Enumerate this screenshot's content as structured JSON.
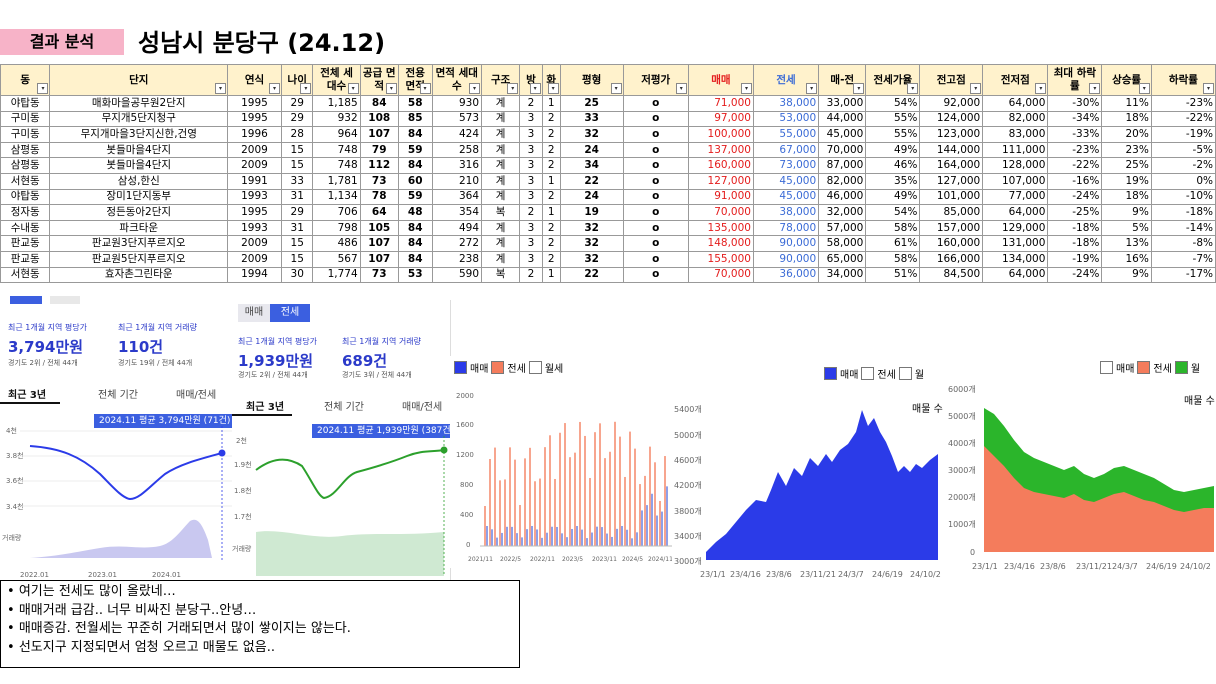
{
  "header": {
    "tag": "결과 분석",
    "title": "성남시 분당구 (24.12)"
  },
  "table": {
    "columns": [
      "동",
      "단지",
      "연식",
      "나이",
      "전체 세대수",
      "공급 면적",
      "전용 면적",
      "면적 세대수",
      "구조",
      "방",
      "화",
      "평형",
      "저평가",
      "매매",
      "전세",
      "매-전",
      "전세가율",
      "전고점",
      "전저점",
      "최대 하락률",
      "상승률",
      "하락률"
    ],
    "rows": [
      [
        "야탑동",
        "매화마을공무원2단지",
        "1995",
        "29",
        "1,185",
        "84",
        "58",
        "930",
        "계",
        "2",
        "1",
        "25",
        "o",
        "71,000",
        "38,000",
        "33,000",
        "54%",
        "92,000",
        "64,000",
        "-30%",
        "11%",
        "-23%"
      ],
      [
        "구미동",
        "무지개5단지청구",
        "1995",
        "29",
        "932",
        "108",
        "85",
        "573",
        "계",
        "3",
        "2",
        "33",
        "o",
        "97,000",
        "53,000",
        "44,000",
        "55%",
        "124,000",
        "82,000",
        "-34%",
        "18%",
        "-22%"
      ],
      [
        "구미동",
        "무지개마을3단지신한,건영",
        "1996",
        "28",
        "964",
        "107",
        "84",
        "424",
        "계",
        "3",
        "2",
        "32",
        "o",
        "100,000",
        "55,000",
        "45,000",
        "55%",
        "123,000",
        "83,000",
        "-33%",
        "20%",
        "-19%"
      ],
      [
        "삼평동",
        "봇들마을4단지",
        "2009",
        "15",
        "748",
        "79",
        "59",
        "258",
        "계",
        "3",
        "2",
        "24",
        "o",
        "137,000",
        "67,000",
        "70,000",
        "49%",
        "144,000",
        "111,000",
        "-23%",
        "23%",
        "-5%"
      ],
      [
        "삼평동",
        "봇들마을4단지",
        "2009",
        "15",
        "748",
        "112",
        "84",
        "316",
        "계",
        "3",
        "2",
        "34",
        "o",
        "160,000",
        "73,000",
        "87,000",
        "46%",
        "164,000",
        "128,000",
        "-22%",
        "25%",
        "-2%"
      ],
      [
        "서현동",
        "삼성,한신",
        "1991",
        "33",
        "1,781",
        "73",
        "60",
        "210",
        "계",
        "3",
        "1",
        "22",
        "o",
        "127,000",
        "45,000",
        "82,000",
        "35%",
        "127,000",
        "107,000",
        "-16%",
        "19%",
        "0%"
      ],
      [
        "야탑동",
        "장미1단지동부",
        "1993",
        "31",
        "1,134",
        "78",
        "59",
        "364",
        "계",
        "3",
        "2",
        "24",
        "o",
        "91,000",
        "45,000",
        "46,000",
        "49%",
        "101,000",
        "77,000",
        "-24%",
        "18%",
        "-10%"
      ],
      [
        "정자동",
        "정든동아2단지",
        "1995",
        "29",
        "706",
        "64",
        "48",
        "354",
        "복",
        "2",
        "1",
        "19",
        "o",
        "70,000",
        "38,000",
        "32,000",
        "54%",
        "85,000",
        "64,000",
        "-25%",
        "9%",
        "-18%"
      ],
      [
        "수내동",
        "파크타운",
        "1993",
        "31",
        "798",
        "105",
        "84",
        "494",
        "계",
        "3",
        "2",
        "32",
        "o",
        "135,000",
        "78,000",
        "57,000",
        "58%",
        "157,000",
        "129,000",
        "-18%",
        "5%",
        "-14%"
      ],
      [
        "판교동",
        "판교원3단지푸르지오",
        "2009",
        "15",
        "486",
        "107",
        "84",
        "272",
        "계",
        "3",
        "2",
        "32",
        "o",
        "148,000",
        "90,000",
        "58,000",
        "61%",
        "160,000",
        "131,000",
        "-18%",
        "13%",
        "-8%"
      ],
      [
        "판교동",
        "판교원5단지푸르지오",
        "2009",
        "15",
        "567",
        "107",
        "84",
        "238",
        "계",
        "3",
        "2",
        "32",
        "o",
        "155,000",
        "90,000",
        "65,000",
        "58%",
        "166,000",
        "134,000",
        "-19%",
        "16%",
        "-7%"
      ],
      [
        "서현동",
        "효자촌그린타운",
        "1994",
        "30",
        "1,774",
        "73",
        "53",
        "590",
        "복",
        "2",
        "1",
        "22",
        "o",
        "70,000",
        "36,000",
        "34,000",
        "51%",
        "84,500",
        "64,000",
        "-24%",
        "9%",
        "-17%"
      ]
    ]
  },
  "panel1": {
    "lbl_price": "최근 1개월 지역 평당가",
    "lbl_vol": "최근 1개월 지역 거래량",
    "price": "3,794만원",
    "vol": "110건",
    "rank_price": "경기도 2위 / 전체 44개",
    "rank_vol": "경기도 19위 / 전체 44개",
    "tabs": [
      "최근 3년",
      "전체 기간",
      "매매/전세"
    ],
    "tip": "2024.11 평균 3,794만원 (71건)",
    "yticks": [
      "4천",
      "3.8천",
      "3.6천",
      "3.4천"
    ],
    "vol_label": "거래량",
    "xticks": [
      "2022.01",
      "2023.01",
      "2024.01"
    ]
  },
  "panel2": {
    "toggle": [
      "매매",
      "전세"
    ],
    "lbl_price": "최근 1개월 지역 평당가",
    "lbl_vol": "최근 1개월 지역 거래량",
    "price": "1,939만원",
    "vol": "689건",
    "rank_price": "경기도 2위 / 전체 44개",
    "rank_vol": "경기도 3위 / 전체 44개",
    "tabs": [
      "최근 3년",
      "전체 기간",
      "매매/전세"
    ],
    "tip": "2024.11 평균 1,939만원 (387건)",
    "yticks": [
      "2천",
      "1.9천",
      "1.8천",
      "1.7천"
    ],
    "vol_label": "거래량"
  },
  "chart3": {
    "legend": [
      "매매",
      "전세",
      "월세"
    ],
    "yticks": [
      "2000",
      "1600",
      "1200",
      "800",
      "400",
      "0"
    ],
    "xticks": [
      "2021/11",
      "2022/5",
      "2022/11",
      "2023/5",
      "2023/11",
      "2024/5",
      "2024/11"
    ]
  },
  "chart4": {
    "legend": [
      "매매",
      "전세",
      "월"
    ],
    "title": "매물 수",
    "yticks": [
      "5400개",
      "5000개",
      "4600개",
      "4200개",
      "3800개",
      "3400개",
      "3000개"
    ],
    "xticks": [
      "23/1/1",
      "23/4/16",
      "23/8/6",
      "23/11/21",
      "24/3/7",
      "24/6/19",
      "24/10/2"
    ]
  },
  "chart5": {
    "legend": [
      "매매",
      "전세",
      "월"
    ],
    "title": "매물 수",
    "yticks": [
      "6000개",
      "5000개",
      "4000개",
      "3000개",
      "2000개",
      "1000개",
      "0"
    ],
    "xticks": [
      "23/1/1",
      "23/4/16",
      "23/8/6",
      "23/11/21",
      "24/3/7",
      "24/6/19",
      "24/10/2"
    ]
  },
  "notes": [
    "여기는 전세도 많이 올랐네…",
    "매매거래 급감.. 너무 비싸진 분당구..안녕…",
    "매매증감. 전월세는 꾸준히 거래되면서 많이 쌓이지는 않는다.",
    "선도지구 지정되면서 엄청 오르고 매물도 없음.."
  ],
  "colors": {
    "sale": "#2b3be8",
    "jeonse": "#f47c5c",
    "wolse": "#2bb52b",
    "table_header": "#fff2cc",
    "tag": "#f7b3c8",
    "accent": "#3b5fe0"
  }
}
